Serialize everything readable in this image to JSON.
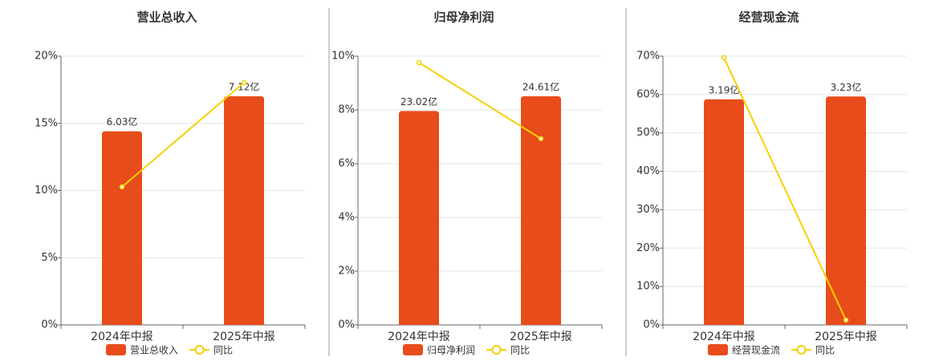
{
  "chart_data": [
    {
      "type": "bar-line",
      "title": "营业总收入",
      "categories": [
        "2024年中报",
        "2025年中报"
      ],
      "series": [
        {
          "name": "营业总收入",
          "type": "bar",
          "color": "#e84c1a",
          "axis": "y2",
          "values": [
            6.03,
            7.12
          ],
          "value_labels": [
            "6.03亿",
            "7.12亿"
          ]
        },
        {
          "name": "同比",
          "type": "line",
          "color": "#f5d000",
          "values": [
            10.27,
            18.03
          ]
        }
      ],
      "ylim": [
        0,
        20
      ],
      "yticks": [
        {
          "value": 0,
          "label": "0%"
        },
        {
          "value": 5,
          "label": "5%"
        },
        {
          "value": 10,
          "label": "10%"
        },
        {
          "value": 15,
          "label": "15%"
        },
        {
          "value": 20,
          "label": "20%"
        }
      ],
      "y2lim": [
        0,
        8.37
      ],
      "grid": true
    },
    {
      "type": "bar-line",
      "title": "归母净利润",
      "categories": [
        "2024年中报",
        "2025年中报"
      ],
      "series": [
        {
          "name": "归母净利润",
          "type": "bar",
          "color": "#e84c1a",
          "axis": "y2",
          "values": [
            23.02,
            24.61
          ],
          "value_labels": [
            "23.02亿",
            "24.61亿"
          ]
        },
        {
          "name": "同比",
          "type": "line",
          "color": "#f5d000",
          "values": [
            9.76,
            6.93
          ]
        }
      ],
      "ylim": [
        0,
        10
      ],
      "yticks": [
        {
          "value": 0,
          "label": "0%"
        },
        {
          "value": 2,
          "label": "2%"
        },
        {
          "value": 4,
          "label": "4%"
        },
        {
          "value": 6,
          "label": "6%"
        },
        {
          "value": 8,
          "label": "8%"
        },
        {
          "value": 10,
          "label": "10%"
        }
      ],
      "y2lim": [
        0,
        28.93
      ],
      "grid": true
    },
    {
      "type": "bar-line",
      "title": "经营现金流",
      "categories": [
        "2024年中报",
        "2025年中报"
      ],
      "series": [
        {
          "name": "经营现金流",
          "type": "bar",
          "color": "#e84c1a",
          "axis": "y2",
          "values": [
            3.19,
            3.23
          ],
          "value_labels": [
            "3.19亿",
            "3.23亿"
          ]
        },
        {
          "name": "同比",
          "type": "line",
          "color": "#f5d000",
          "values": [
            69.6,
            1.25
          ]
        }
      ],
      "ylim": [
        0,
        70
      ],
      "yticks": [
        {
          "value": 0,
          "label": "0%"
        },
        {
          "value": 10,
          "label": "10%"
        },
        {
          "value": 20,
          "label": "20%"
        },
        {
          "value": 30,
          "label": "30%"
        },
        {
          "value": 40,
          "label": "40%"
        },
        {
          "value": 50,
          "label": "50%"
        },
        {
          "value": 60,
          "label": "60%"
        },
        {
          "value": 70,
          "label": "70%"
        }
      ],
      "y2lim": [
        0,
        3.8
      ],
      "grid": true
    }
  ]
}
